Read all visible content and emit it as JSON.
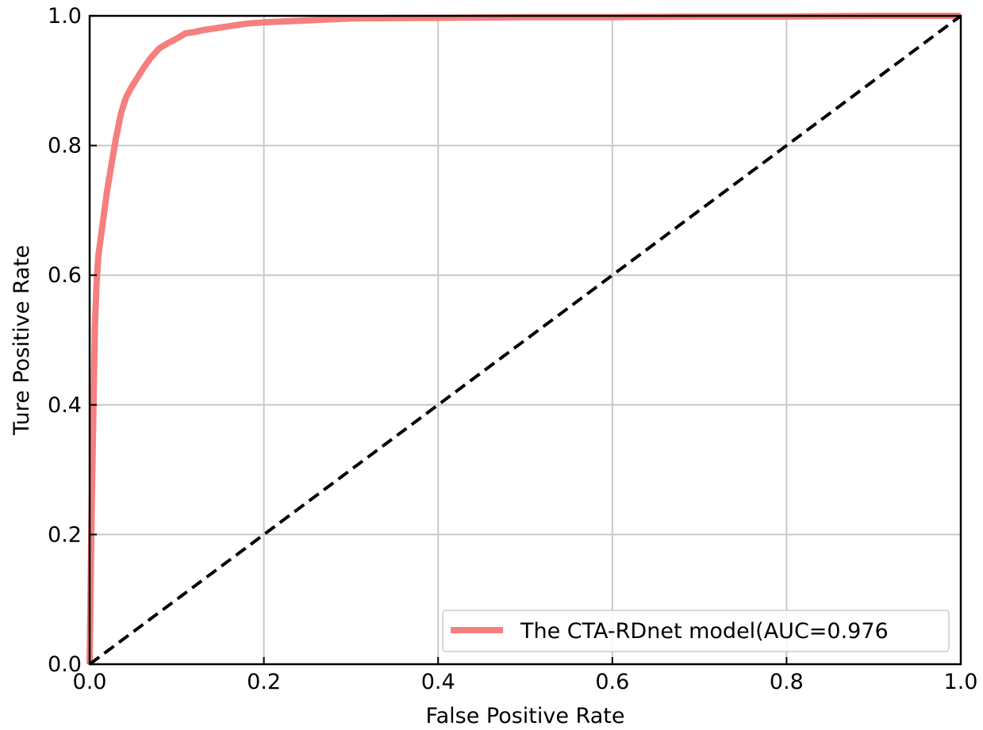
{
  "chart_data": {
    "type": "line",
    "title": "",
    "xlabel": "False Positive Rate",
    "ylabel": "Ture Positive Rate",
    "xlim": [
      0.0,
      1.0
    ],
    "ylim": [
      0.0,
      1.0
    ],
    "xticks": [
      "0.0",
      "0.2",
      "0.4",
      "0.6",
      "0.8",
      "1.0"
    ],
    "yticks": [
      "0.0",
      "0.2",
      "0.4",
      "0.6",
      "0.8",
      "1.0"
    ],
    "grid": true,
    "legend_position": "lower-right",
    "series": [
      {
        "name": "The CTA-RDnet model(AUC=0.976",
        "color": "#f57f7f",
        "style": "solid",
        "x": [
          0.0,
          0.002,
          0.004,
          0.006,
          0.008,
          0.01,
          0.013,
          0.016,
          0.02,
          0.025,
          0.03,
          0.036,
          0.042,
          0.048,
          0.055,
          0.062,
          0.07,
          0.08,
          0.09,
          0.1,
          0.11,
          0.12,
          0.13,
          0.14,
          0.16,
          0.18,
          0.2,
          0.25,
          0.3,
          0.4,
          0.5,
          0.6,
          0.7,
          0.8,
          0.9,
          1.0
        ],
        "y": [
          0.0,
          0.21,
          0.37,
          0.52,
          0.59,
          0.63,
          0.66,
          0.69,
          0.73,
          0.77,
          0.81,
          0.85,
          0.875,
          0.89,
          0.905,
          0.92,
          0.935,
          0.95,
          0.958,
          0.965,
          0.973,
          0.975,
          0.978,
          0.98,
          0.984,
          0.988,
          0.99,
          0.993,
          0.996,
          0.997,
          0.998,
          0.998,
          0.999,
          0.999,
          1.0,
          1.0
        ]
      },
      {
        "name": "",
        "color": "#000000",
        "style": "dashed",
        "x": [
          0.0,
          1.0
        ],
        "y": [
          0.0,
          1.0
        ]
      }
    ]
  }
}
